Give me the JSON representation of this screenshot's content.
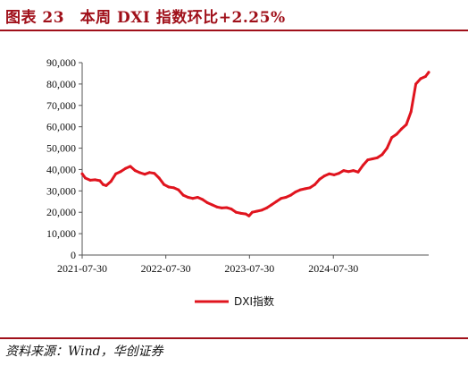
{
  "figure_title": "图表 23　本周 DXI 指数环比+2.25%",
  "source_text": "资料来源：Wind，华创证券",
  "chart_data": {
    "type": "line",
    "title": "图表 23　本周 DXI 指数环比+2.25%",
    "xlabel": "",
    "ylabel": "",
    "x_ticks": [
      "2021-07-30",
      "2022-07-30",
      "2023-07-30",
      "2024-07-30"
    ],
    "y_ticks": [
      "0",
      "10,000",
      "20,000",
      "30,000",
      "40,000",
      "50,000",
      "60,000",
      "70,000",
      "80,000",
      "90,000"
    ],
    "ylim": [
      0,
      90000
    ],
    "xlim": [
      "2021-07-30",
      "2025-09-19"
    ],
    "legend_position": "bottom",
    "grid": false,
    "series": [
      {
        "name": "DXI指数",
        "color": "#e0141e",
        "points": [
          [
            "2021-07-30",
            38000
          ],
          [
            "2021-08-13",
            36000
          ],
          [
            "2021-09-03",
            35000
          ],
          [
            "2021-09-24",
            35200
          ],
          [
            "2021-10-15",
            34800
          ],
          [
            "2021-10-29",
            33000
          ],
          [
            "2021-11-12",
            32500
          ],
          [
            "2021-12-03",
            34500
          ],
          [
            "2021-12-24",
            38000
          ],
          [
            "2022-01-14",
            39000
          ],
          [
            "2022-02-04",
            40500
          ],
          [
            "2022-02-25",
            41500
          ],
          [
            "2022-03-18",
            39500
          ],
          [
            "2022-04-08",
            38500
          ],
          [
            "2022-04-29",
            37800
          ],
          [
            "2022-05-20",
            38600
          ],
          [
            "2022-06-10",
            38200
          ],
          [
            "2022-07-01",
            36000
          ],
          [
            "2022-07-22",
            33000
          ],
          [
            "2022-08-12",
            31800
          ],
          [
            "2022-09-02",
            31500
          ],
          [
            "2022-09-23",
            30500
          ],
          [
            "2022-10-14",
            28000
          ],
          [
            "2022-11-04",
            27000
          ],
          [
            "2022-11-25",
            26500
          ],
          [
            "2022-12-16",
            27000
          ],
          [
            "2023-01-06",
            26000
          ],
          [
            "2023-01-27",
            24500
          ],
          [
            "2023-02-17",
            23500
          ],
          [
            "2023-03-10",
            22500
          ],
          [
            "2023-03-31",
            22000
          ],
          [
            "2023-04-21",
            22200
          ],
          [
            "2023-05-12",
            21500
          ],
          [
            "2023-06-02",
            20000
          ],
          [
            "2023-06-23",
            19500
          ],
          [
            "2023-07-14",
            19200
          ],
          [
            "2023-07-28",
            18300
          ],
          [
            "2023-08-11",
            20000
          ],
          [
            "2023-09-01",
            20500
          ],
          [
            "2023-09-22",
            21000
          ],
          [
            "2023-10-13",
            22000
          ],
          [
            "2023-11-03",
            23500
          ],
          [
            "2023-11-24",
            25000
          ],
          [
            "2023-12-15",
            26500
          ],
          [
            "2024-01-05",
            27000
          ],
          [
            "2024-01-26",
            28000
          ],
          [
            "2024-02-16",
            29500
          ],
          [
            "2024-03-08",
            30500
          ],
          [
            "2024-03-29",
            31000
          ],
          [
            "2024-04-19",
            31500
          ],
          [
            "2024-05-10",
            33000
          ],
          [
            "2024-05-31",
            35500
          ],
          [
            "2024-06-21",
            37000
          ],
          [
            "2024-07-12",
            38000
          ],
          [
            "2024-08-02",
            37500
          ],
          [
            "2024-08-23",
            38200
          ],
          [
            "2024-09-13",
            39500
          ],
          [
            "2024-10-04",
            39000
          ],
          [
            "2024-10-25",
            39500
          ],
          [
            "2024-11-15",
            38800
          ],
          [
            "2024-12-06",
            42000
          ],
          [
            "2024-12-27",
            44500
          ],
          [
            "2025-01-17",
            45000
          ],
          [
            "2025-02-07",
            45500
          ],
          [
            "2025-02-28",
            47000
          ],
          [
            "2025-03-21",
            50000
          ],
          [
            "2025-04-11",
            55000
          ],
          [
            "2025-05-02",
            56500
          ],
          [
            "2025-05-23",
            59000
          ],
          [
            "2025-06-13",
            61000
          ],
          [
            "2025-07-04",
            67000
          ],
          [
            "2025-07-25",
            80000
          ],
          [
            "2025-08-15",
            82500
          ],
          [
            "2025-09-05",
            83500
          ],
          [
            "2025-09-19",
            85500
          ]
        ]
      }
    ]
  }
}
